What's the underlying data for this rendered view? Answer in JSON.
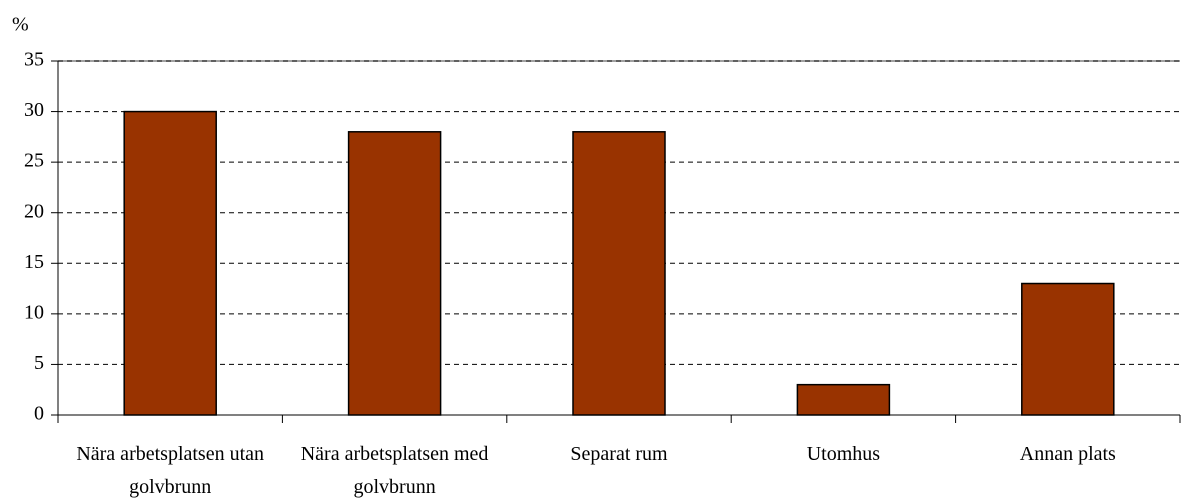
{
  "chart_data": {
    "type": "bar",
    "y_label": "%",
    "categories": [
      "Nära arbetsplatsen utan golvbrunn",
      "Nära arbetsplatsen med golvbrunn",
      "Separat rum",
      "Utomhus",
      "Annan plats"
    ],
    "values": [
      30,
      28,
      28,
      3,
      13
    ],
    "color": "#993300",
    "ylim": [
      0,
      35
    ],
    "yticks": [
      0,
      5,
      10,
      15,
      20,
      25,
      30,
      35
    ],
    "grid": true
  }
}
